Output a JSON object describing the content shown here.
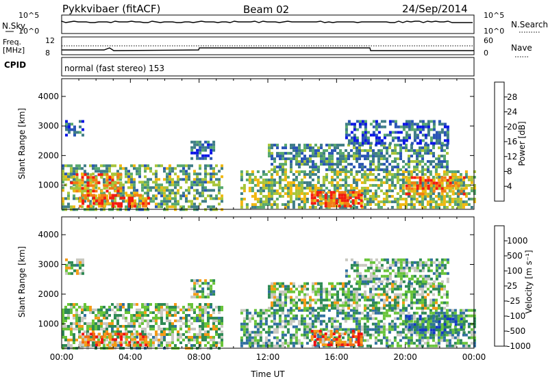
{
  "header": {
    "station": "Pykkvibaer (fitACF)",
    "beam": "Beam 02",
    "date": "24/Sep/2014",
    "cpid_label": "CPID",
    "cpid_value": "normal (fast stereo) 153"
  },
  "params": {
    "nsky_label": "N.Sky",
    "nsky_ticks": [
      "10^5",
      "10^0"
    ],
    "nsearch_label": "N.Search",
    "nsearch_ticks": [
      "10^5",
      "10^0"
    ],
    "freq_label": "Freq.",
    "freq_unit": "[MHz]",
    "freq_ticks": [
      "12",
      "8"
    ],
    "nave_label": "Nave",
    "nave_ticks": [
      "60",
      "0"
    ]
  },
  "chart_data": [
    {
      "type": "heatmap",
      "name": "power",
      "ylabel": "Slant Range [km]",
      "ylim": [
        180,
        4600
      ],
      "yticks": [
        "1000",
        "2000",
        "3000",
        "4000"
      ],
      "xlabel": "Time UT",
      "xlim_hours": [
        0,
        24
      ],
      "xticks": [
        "00:00",
        "04:00",
        "08:00",
        "12:00",
        "16:00",
        "20:00",
        "00:00"
      ],
      "colorbar": {
        "label": "Power [dB]",
        "range": [
          0,
          32
        ],
        "ticks": [
          "4",
          "8",
          "12",
          "16",
          "20",
          "24",
          "28"
        ],
        "colors": [
          "#0a14e6",
          "#2a55b5",
          "#3f7d86",
          "#58a86e",
          "#a8c53a",
          "#f0b812",
          "#f47c14",
          "#f51a0f"
        ]
      },
      "regions": [
        {
          "t": [
            0.0,
            9.3
          ],
          "r": [
            200,
            1700
          ],
          "level": 0.45
        },
        {
          "t": [
            0.2,
            1.2
          ],
          "r": [
            2700,
            3200
          ],
          "level": 0.2
        },
        {
          "t": [
            1.0,
            5.0
          ],
          "r": [
            300,
            700
          ],
          "level": 0.85
        },
        {
          "t": [
            0.5,
            3.5
          ],
          "r": [
            800,
            1400
          ],
          "level": 0.75
        },
        {
          "t": [
            7.5,
            8.8
          ],
          "r": [
            1900,
            2500
          ],
          "level": 0.25
        },
        {
          "t": [
            10.4,
            24.0
          ],
          "r": [
            250,
            1500
          ],
          "level": 0.5
        },
        {
          "t": [
            14.5,
            17.5
          ],
          "r": [
            300,
            800
          ],
          "level": 0.85
        },
        {
          "t": [
            12.0,
            22.5
          ],
          "r": [
            1500,
            2400
          ],
          "level": 0.35
        },
        {
          "t": [
            16.5,
            22.5
          ],
          "r": [
            2400,
            3200
          ],
          "level": 0.25
        },
        {
          "t": [
            20.0,
            23.5
          ],
          "r": [
            700,
            1300
          ],
          "level": 0.8
        }
      ]
    },
    {
      "type": "heatmap",
      "name": "velocity",
      "ylabel": "Slant Range [km]",
      "ylim": [
        180,
        4600
      ],
      "yticks": [
        "1000",
        "2000",
        "3000",
        "4000"
      ],
      "xlabel": "Time UT",
      "xlim_hours": [
        0,
        24
      ],
      "xticks": [
        "00:00",
        "04:00",
        "08:00",
        "12:00",
        "16:00",
        "20:00",
        "00:00"
      ],
      "colorbar": {
        "label": "Velocity [m s⁻¹]",
        "ticks": [
          "1000",
          "500",
          "100",
          "25",
          "-25",
          "-100",
          "-500",
          "-1000"
        ],
        "colors": [
          "#1437c8",
          "#2f6fa0",
          "#2f8a55",
          "#69c43a",
          "#c8c8c0",
          "#f59b16",
          "#f26a10",
          "#f01010"
        ]
      },
      "regions": [
        {
          "t": [
            0.0,
            9.3
          ],
          "r": [
            200,
            1700
          ],
          "level": 0.45
        },
        {
          "t": [
            0.2,
            1.2
          ],
          "r": [
            2700,
            3200
          ],
          "level": 0.45
        },
        {
          "t": [
            1.0,
            5.0
          ],
          "r": [
            300,
            700
          ],
          "level": 0.8
        },
        {
          "t": [
            7.5,
            8.8
          ],
          "r": [
            1900,
            2500
          ],
          "level": 0.45
        },
        {
          "t": [
            10.4,
            24.0
          ],
          "r": [
            250,
            1500
          ],
          "level": 0.35
        },
        {
          "t": [
            14.5,
            17.5
          ],
          "r": [
            300,
            800
          ],
          "level": 0.8
        },
        {
          "t": [
            12.0,
            22.5
          ],
          "r": [
            1500,
            2400
          ],
          "level": 0.45
        },
        {
          "t": [
            16.5,
            22.5
          ],
          "r": [
            2400,
            3200
          ],
          "level": 0.4
        },
        {
          "t": [
            20.0,
            23.5
          ],
          "r": [
            700,
            1300
          ],
          "level": 0.25
        }
      ]
    }
  ]
}
